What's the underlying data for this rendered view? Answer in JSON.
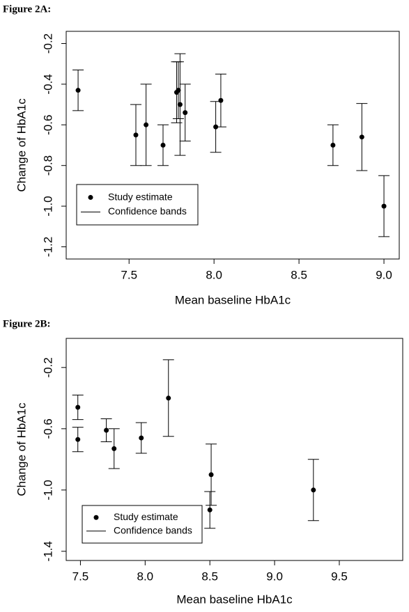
{
  "chart_data": [
    {
      "type": "scatter",
      "figure_label": "Figure 2A:",
      "x_label": "Mean baseline HbA1c",
      "y_label": "Change of HbA1c",
      "xlim": [
        7.13,
        9.09
      ],
      "ylim": [
        -1.26,
        -0.14
      ],
      "xticks": [
        7.5,
        {
          "value": 8,
          "label": "8.0"
        },
        8.5,
        {
          "value": 9,
          "label": "9.0"
        }
      ],
      "yticks": [
        -0.2,
        -0.4,
        -0.6,
        -0.8,
        {
          "value": -1,
          "label": "-1.0"
        },
        -1.2
      ],
      "legend": "lower left",
      "error_name": "Confidence bands",
      "series": [
        {
          "name": "Study estimate",
          "color": "#000000",
          "x": [
            7.2,
            7.54,
            7.6,
            7.7,
            7.78,
            7.79,
            7.8,
            7.83,
            8.01,
            8.04,
            8.7,
            8.87,
            9.0
          ],
          "values": [
            -0.43,
            -0.65,
            -0.6,
            -0.7,
            -0.44,
            -0.43,
            -0.5,
            -0.54,
            -0.61,
            -0.48,
            -0.7,
            -0.66,
            -1.0
          ],
          "errors": [
            0.1,
            0.15,
            0.2,
            0.1,
            0.15,
            0.14,
            0.25,
            0.14,
            0.125,
            0.13,
            0.1,
            0.165,
            0.15
          ]
        }
      ]
    },
    {
      "type": "scatter",
      "figure_label": "Figure 2B:",
      "x_label": "Mean baseline HbA1c",
      "y_label": "Change of HbA1c",
      "xlim": [
        7.39,
        9.99
      ],
      "ylim": [
        -1.46,
        -0.01
      ],
      "xticks": [
        7.5,
        {
          "value": 8,
          "label": "8.0"
        },
        8.5,
        {
          "value": 9,
          "label": "9.0"
        },
        9.5
      ],
      "yticks": [
        -0.2,
        -0.6,
        {
          "value": -1,
          "label": "-1.0"
        },
        -1.4
      ],
      "legend": "lower left",
      "error_name": "Confidence bands",
      "series": [
        {
          "name": "Study estimate",
          "color": "#000000",
          "x": [
            7.48,
            7.48,
            7.7,
            7.76,
            7.97,
            8.18,
            8.51,
            8.5,
            9.3
          ],
          "values": [
            -0.46,
            -0.67,
            -0.61,
            -0.73,
            -0.66,
            -0.4,
            -0.9,
            -1.13,
            -1.0
          ],
          "errors": [
            0.08,
            0.08,
            0.075,
            0.13,
            0.1,
            0.25,
            0.2,
            0.12,
            0.2
          ]
        }
      ]
    }
  ]
}
